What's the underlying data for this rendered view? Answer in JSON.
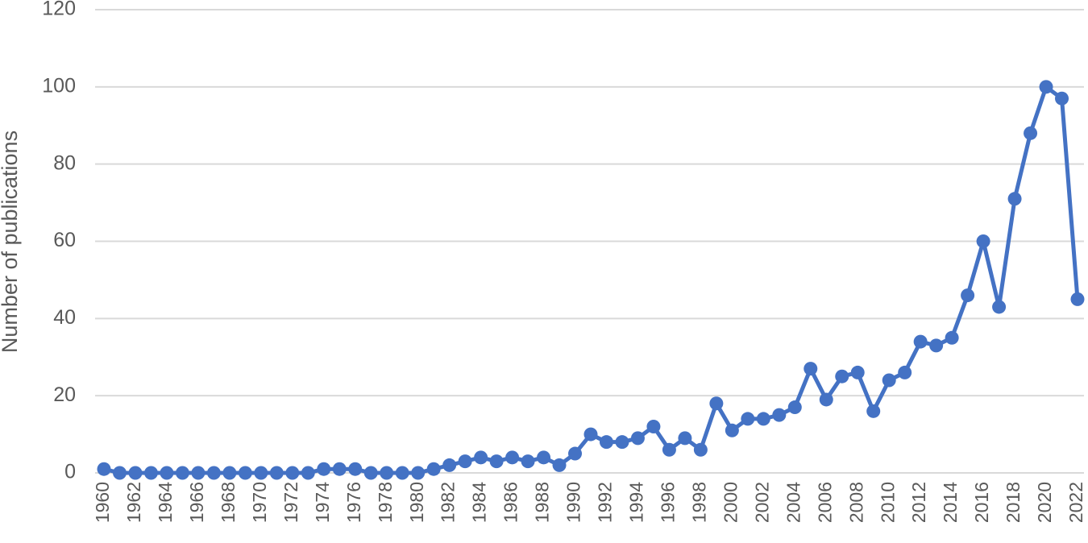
{
  "chart_data": {
    "type": "line",
    "y_label": "Number of publications",
    "categories": [
      "1960",
      null,
      "1962",
      null,
      "1964",
      null,
      "1966",
      null,
      "1968",
      null,
      "1970",
      null,
      "1972",
      null,
      "1974",
      null,
      "1976",
      null,
      "1978",
      null,
      "1980",
      null,
      "1982",
      null,
      "1984",
      null,
      "1986",
      null,
      "1988",
      null,
      "1990",
      null,
      "1992",
      null,
      "1994",
      null,
      "1996",
      null,
      "1998",
      null,
      "2000",
      null,
      "2002",
      null,
      "2004",
      null,
      "2006",
      null,
      "2008",
      null,
      "2010",
      null,
      "2012",
      null,
      "2014",
      null,
      "2016",
      null,
      "2018",
      null,
      "2020",
      null,
      "2022"
    ],
    "series": [
      {
        "name": "Publications",
        "color": "#4472c4",
        "values": [
          1,
          0,
          0,
          0,
          0,
          0,
          0,
          0,
          0,
          0,
          0,
          0,
          0,
          0,
          1,
          1,
          1,
          0,
          0,
          0,
          0,
          1,
          2,
          3,
          4,
          3,
          4,
          3,
          4,
          2,
          5,
          10,
          8,
          8,
          9,
          12,
          6,
          9,
          6,
          18,
          11,
          14,
          14,
          15,
          17,
          27,
          19,
          25,
          26,
          16,
          24,
          26,
          34,
          33,
          35,
          46,
          60,
          43,
          71,
          88,
          100,
          97,
          45
        ]
      }
    ],
    "ylim": [
      0,
      120
    ],
    "yticks": [
      0,
      20,
      40,
      60,
      80,
      100,
      120
    ],
    "grid": true
  }
}
